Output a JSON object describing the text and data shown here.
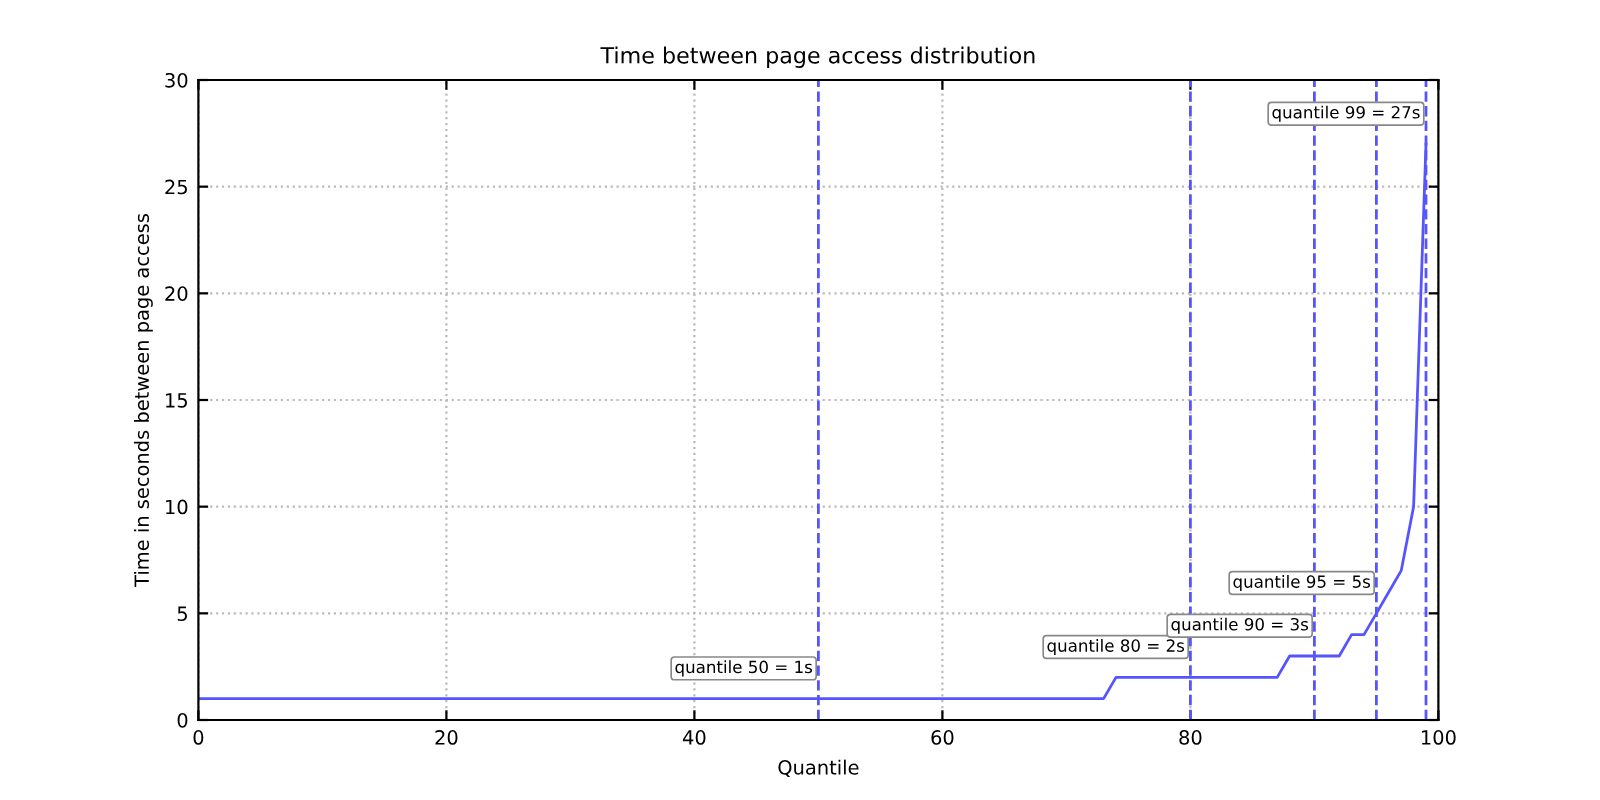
{
  "chart_data": {
    "type": "line",
    "title": "Time between page access distribution",
    "xlabel": "Quantile",
    "ylabel": "Time in seconds between page access",
    "series": [
      {
        "color": "#5555ff",
        "x": [
          0,
          73,
          74,
          87,
          88,
          92,
          93,
          94,
          95,
          96,
          97,
          98,
          99
        ],
        "values": [
          1,
          1,
          2,
          2,
          3,
          3,
          4,
          4,
          5,
          6,
          7,
          10,
          27
        ]
      }
    ],
    "xlim": [
      0,
      100
    ],
    "ylim": [
      0,
      30
    ],
    "xticks": [
      0,
      20,
      40,
      60,
      80,
      100
    ],
    "yticks": [
      0,
      5,
      10,
      15,
      20,
      25,
      30
    ],
    "grid": true,
    "line_style": "solid",
    "marker": "none",
    "ref_lines": [
      {
        "axis": "x",
        "value": 50,
        "color": "#5555ff",
        "line_style": "dashed"
      },
      {
        "axis": "x",
        "value": 80,
        "color": "#5555ff",
        "line_style": "dashed"
      },
      {
        "axis": "x",
        "value": 90,
        "color": "#5555ff",
        "line_style": "dashed"
      },
      {
        "axis": "x",
        "value": 95,
        "color": "#5555ff",
        "line_style": "dashed"
      },
      {
        "axis": "x",
        "value": 99,
        "color": "#5555ff",
        "line_style": "dashed"
      }
    ],
    "annotations": [
      {
        "text": "quantile 50 = 1s",
        "x": 50,
        "y": 1
      },
      {
        "text": "quantile 80 = 2s",
        "x": 80,
        "y": 2
      },
      {
        "text": "quantile 90 = 3s",
        "x": 90,
        "y": 3
      },
      {
        "text": "quantile 95 = 5s",
        "x": 95,
        "y": 5
      },
      {
        "text": "quantile 99 = 27s",
        "x": 99,
        "y": 27
      }
    ]
  }
}
